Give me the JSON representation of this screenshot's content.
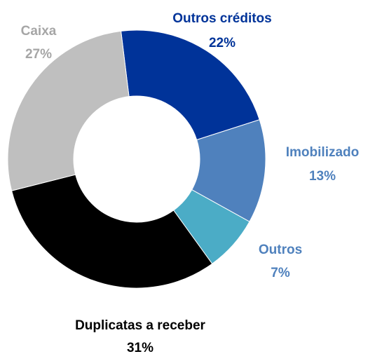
{
  "chart_data": {
    "type": "donut",
    "categories": [
      "Outros créditos",
      "Imobilizado",
      "Outros",
      "Duplicatas a receber",
      "Caixa"
    ],
    "values": [
      22,
      13,
      7,
      31,
      27
    ],
    "value_labels": [
      "22%",
      "13%",
      "7%",
      "31%",
      "27%"
    ],
    "colors": [
      "#003399",
      "#4f81bd",
      "#4bacc6",
      "#000000",
      "#bfbfbf"
    ],
    "label_colors": [
      "#003399",
      "#4f81bd",
      "#4f81bd",
      "#000000",
      "#a6a6a6"
    ]
  }
}
